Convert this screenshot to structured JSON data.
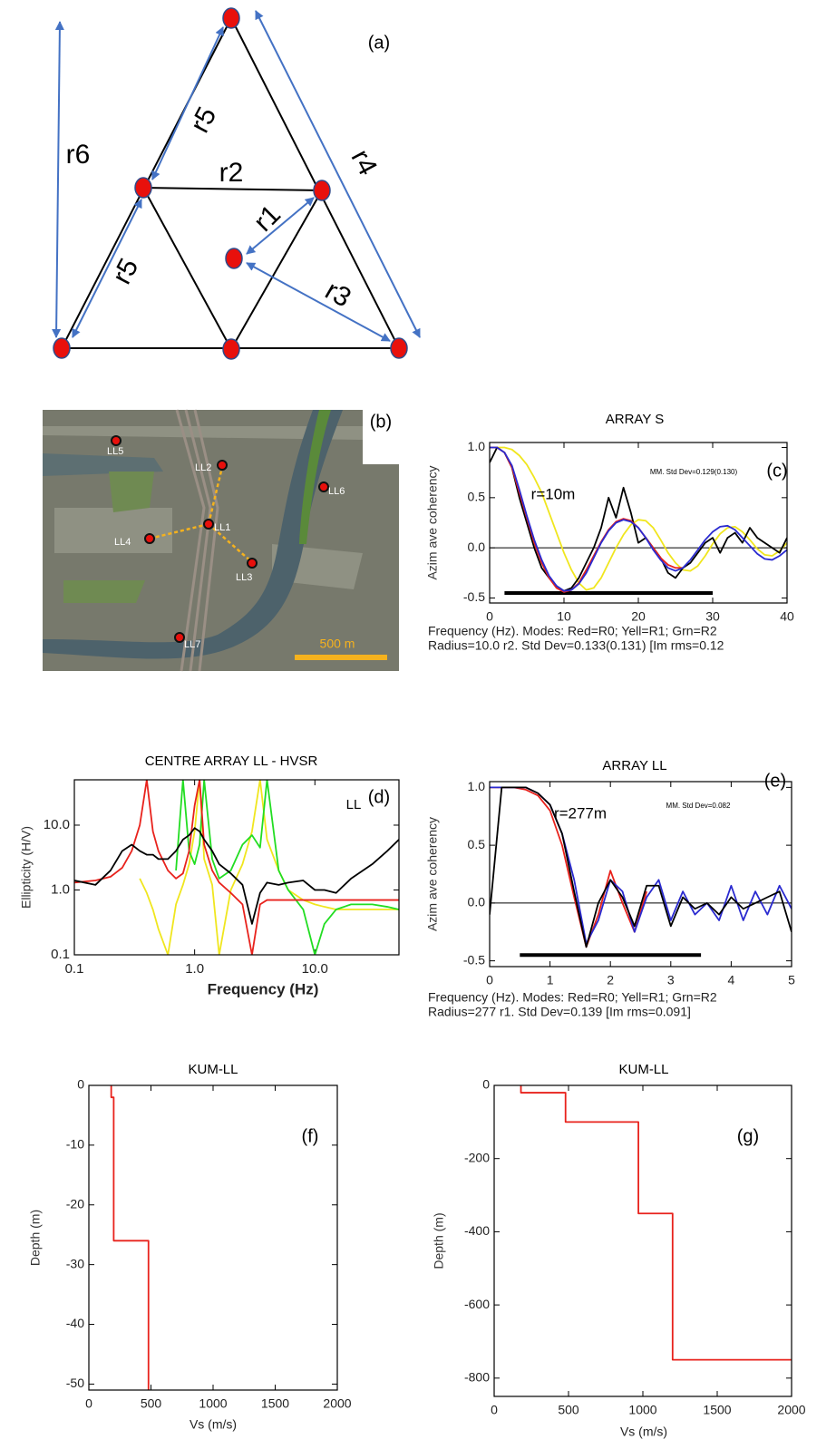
{
  "diagram": {
    "panel_label": "(a)",
    "distance_labels": [
      "r6",
      "r5",
      "r2",
      "r4",
      "r1",
      "r5",
      "r3"
    ]
  },
  "map": {
    "panel_label": "(b)",
    "sites": [
      "LL5",
      "LL2",
      "LL6",
      "LL1",
      "LL4",
      "LL3",
      "LL7"
    ],
    "scale_label": "500 m"
  },
  "chart_data": [
    {
      "type": "line",
      "title": "ARRAY S",
      "panel_label": "(c)",
      "annotations": [
        "r=10m",
        "MM.  Std Dev=0.129(0.130)"
      ],
      "x_label": [
        "Frequency (Hz).     Modes: Red=R0; Yell=R1; Grn=R2",
        "Radius=10.0 r2.   Std Dev=0.133(0.131) [Im rms=0.12"
      ],
      "y_label": "Azim ave coherency",
      "xlim": [
        0,
        40
      ],
      "ylim": [
        -0.55,
        1.05
      ],
      "xticks": [
        0,
        10,
        20,
        30,
        40
      ],
      "yticks": [
        -0.5,
        {
          "value": 0,
          "label": "0.0"
        },
        0.5,
        {
          "value": 1,
          "label": "1.0"
        }
      ],
      "reference_line": 0,
      "fit_range": {
        "x": [
          2,
          30
        ],
        "y": -0.45
      },
      "x": [
        0,
        1,
        2,
        3,
        4,
        5,
        6,
        7,
        8,
        9,
        10,
        11,
        12,
        13,
        14,
        15,
        16,
        17,
        18,
        19,
        20,
        21,
        22,
        23,
        24,
        25,
        26,
        27,
        28,
        29,
        30,
        31,
        32,
        33,
        34,
        35,
        36,
        37,
        38,
        39,
        40
      ],
      "series": [
        {
          "color": "#f0e61e",
          "values": [
            1.0,
            1.0,
            1.0,
            0.98,
            0.92,
            0.83,
            0.7,
            0.55,
            0.35,
            0.15,
            -0.05,
            -0.22,
            -0.35,
            -0.42,
            -0.4,
            -0.3,
            -0.15,
            0.0,
            0.13,
            0.23,
            0.28,
            0.27,
            0.2,
            0.08,
            -0.05,
            -0.15,
            -0.22,
            -0.23,
            -0.18,
            -0.08,
            0.04,
            0.14,
            0.2,
            0.21,
            0.16,
            0.08,
            -0.01,
            -0.07,
            -0.08,
            -0.03,
            0.05
          ]
        },
        {
          "color": "#000000",
          "values": [
            0.85,
            1.0,
            0.95,
            0.8,
            0.5,
            0.25,
            0.0,
            -0.2,
            -0.3,
            -0.38,
            -0.43,
            -0.4,
            -0.3,
            -0.15,
            0.0,
            0.2,
            0.5,
            0.3,
            0.6,
            0.35,
            0.05,
            0.1,
            0.0,
            -0.1,
            -0.25,
            -0.3,
            -0.2,
            -0.15,
            -0.05,
            0.05,
            0.1,
            -0.05,
            0.1,
            0.15,
            0.05,
            0.2,
            0.1,
            0.05,
            0.0,
            -0.05,
            0.1
          ]
        },
        {
          "color": "#e8221c",
          "values": [
            1.0,
            1.0,
            0.95,
            0.8,
            0.55,
            0.3,
            0.05,
            -0.15,
            -0.3,
            -0.4,
            -0.44,
            -0.42,
            -0.35,
            -0.22,
            -0.08,
            0.06,
            0.18,
            0.26,
            0.29,
            0.27,
            0.2,
            0.1,
            0.0,
            -0.1,
            -0.17,
            -0.2,
            -0.2,
            null,
            null,
            null,
            null,
            null,
            null,
            null,
            null,
            null,
            null,
            null,
            null,
            null,
            null
          ]
        },
        {
          "color": "#2a2ad0",
          "values": [
            1.0,
            1.0,
            0.95,
            0.82,
            0.58,
            0.32,
            0.08,
            -0.12,
            -0.28,
            -0.38,
            -0.43,
            -0.42,
            -0.36,
            -0.25,
            -0.1,
            0.05,
            0.17,
            0.25,
            0.28,
            0.26,
            0.2,
            0.1,
            -0.02,
            -0.12,
            -0.2,
            -0.23,
            -0.2,
            -0.12,
            -0.02,
            0.08,
            0.16,
            0.21,
            0.22,
            0.18,
            0.1,
            0.02,
            -0.06,
            -0.11,
            -0.12,
            -0.08,
            -0.02
          ]
        }
      ]
    },
    {
      "type": "line",
      "title": "CENTRE ARRAY LL  -  HVSR",
      "panel_label": "(d)",
      "annotations": [
        "LL"
      ],
      "x_label": "Frequency (Hz)",
      "y_label": "Ellipticity (H/V)",
      "log_x": true,
      "log_y": true,
      "xlim": [
        0.1,
        50
      ],
      "ylim": [
        0.1,
        50
      ],
      "xticks": [
        0.1,
        {
          "value": 1,
          "label": "1.0"
        },
        {
          "value": 10,
          "label": "10.0"
        }
      ],
      "yticks": [
        0.1,
        {
          "value": 1,
          "label": "1.0"
        },
        {
          "value": 10,
          "label": "10.0"
        }
      ],
      "x": [
        0.1,
        0.15,
        0.2,
        0.25,
        0.3,
        0.35,
        0.4,
        0.45,
        0.5,
        0.6,
        0.7,
        0.8,
        0.9,
        1.0,
        1.1,
        1.2,
        1.4,
        1.6,
        2,
        2.5,
        3,
        3.5,
        4,
        5,
        6,
        8,
        10,
        12,
        15,
        20,
        30,
        40,
        50
      ],
      "series": [
        {
          "color": "#f0e61e",
          "values": [
            null,
            null,
            null,
            null,
            null,
            1.5,
            0.9,
            0.5,
            0.25,
            0.1,
            0.6,
            1.2,
            2.5,
            8,
            50,
            3,
            1.2,
            0.1,
            1.0,
            2.5,
            8,
            50,
            6,
            2,
            1,
            0.7,
            0.6,
            0.55,
            0.5,
            0.5,
            0.5,
            0.5,
            0.5
          ]
        },
        {
          "color": "#22dd22",
          "values": [
            null,
            null,
            null,
            null,
            null,
            null,
            null,
            null,
            null,
            null,
            2,
            50,
            4,
            2.5,
            5,
            50,
            3,
            1.5,
            2,
            5,
            7,
            4.5,
            50,
            2,
            1,
            0.5,
            0.1,
            0.3,
            0.5,
            0.6,
            0.6,
            0.55,
            0.5
          ]
        },
        {
          "color": "#e8221c",
          "values": [
            1.3,
            1.4,
            1.6,
            2.2,
            4,
            10,
            50,
            8,
            4,
            2,
            1.5,
            1.8,
            4,
            20,
            50,
            5,
            2,
            1.3,
            0.9,
            0.6,
            0.1,
            0.6,
            0.7,
            0.7,
            0.7,
            0.7,
            0.7,
            0.7,
            0.7,
            0.7,
            0.7,
            0.7,
            0.7
          ]
        },
        {
          "color": "#000000",
          "values": [
            1.4,
            1.2,
            2,
            4,
            5,
            4,
            3.5,
            3.5,
            3,
            3,
            4,
            6,
            7,
            9,
            8,
            6,
            4,
            2.5,
            1.8,
            1.2,
            0.3,
            0.9,
            1.3,
            1.2,
            1.3,
            1.4,
            1.0,
            1.0,
            0.9,
            1.5,
            2.5,
            4,
            6
          ]
        }
      ]
    },
    {
      "type": "line",
      "title": "ARRAY LL",
      "panel_label": "(e)",
      "annotations": [
        "r=277m",
        "MM.  Std Dev=0.082"
      ],
      "x_label": [
        "Frequency (Hz).     Modes: Red=R0; Yell=R1; Grn=R2",
        "Radius=277 r1.   Std Dev=0.139 [Im rms=0.091]"
      ],
      "y_label": "Azim ave coherency",
      "xlim": [
        0,
        5
      ],
      "ylim": [
        -0.55,
        1.05
      ],
      "xticks": [
        0,
        1,
        2,
        3,
        4,
        5
      ],
      "yticks": [
        -0.5,
        {
          "value": 0,
          "label": "0.0"
        },
        0.5,
        {
          "value": 1,
          "label": "1.0"
        }
      ],
      "reference_line": 0,
      "fit_range": {
        "x": [
          0.5,
          3.5
        ],
        "y": -0.45
      },
      "x": [
        0,
        0.2,
        0.4,
        0.6,
        0.8,
        1.0,
        1.2,
        1.4,
        1.6,
        1.8,
        2.0,
        2.2,
        2.4,
        2.6,
        2.8,
        3.0,
        3.2,
        3.4,
        3.6,
        3.8,
        4.0,
        4.2,
        4.4,
        4.6,
        4.8,
        5.0
      ],
      "series": [
        {
          "color": "#e8221c",
          "values": [
            1.0,
            1.0,
            1.0,
            0.98,
            0.93,
            0.8,
            0.5,
            0.05,
            -0.38,
            -0.1,
            0.28,
            0.0,
            -0.25,
            0.1,
            null,
            null,
            null,
            null,
            null,
            null,
            null,
            null,
            null,
            null,
            null,
            null
          ]
        },
        {
          "color": "#2a2ad0",
          "values": [
            1.0,
            1.0,
            1.0,
            1.0,
            0.95,
            0.85,
            0.6,
            0.2,
            -0.35,
            -0.15,
            0.2,
            0.1,
            -0.25,
            0.05,
            0.2,
            -0.15,
            0.1,
            -0.1,
            0.0,
            -0.15,
            0.15,
            -0.15,
            0.1,
            -0.1,
            0.15,
            -0.05
          ]
        },
        {
          "color": "#000000",
          "values": [
            -0.1,
            1.0,
            1.0,
            1.0,
            0.95,
            0.85,
            0.6,
            0.1,
            -0.38,
            0.0,
            0.2,
            0.05,
            -0.2,
            0.15,
            0.15,
            -0.2,
            0.05,
            -0.05,
            0.0,
            -0.1,
            0.05,
            -0.05,
            0.0,
            0.05,
            0.1,
            -0.25
          ]
        }
      ]
    },
    {
      "type": "line",
      "title": "KUM-LL",
      "panel_label": "(f)",
      "x_label": "Vs (m/s)",
      "y_label": "Depth (m)",
      "xlim": [
        0,
        2000
      ],
      "ylim": [
        -51,
        0
      ],
      "xticks": [
        0,
        500,
        1000,
        1500,
        2000
      ],
      "yticks": [
        0,
        -10,
        -20,
        -30,
        -40,
        -50
      ],
      "x": [
        180,
        180,
        200,
        200,
        480,
        480
      ],
      "series": [
        {
          "color": "#e8221c",
          "values": [
            0,
            -2,
            -2,
            -26,
            -26,
            -51
          ]
        }
      ]
    },
    {
      "type": "line",
      "title": "KUM-LL",
      "panel_label": "(g)",
      "x_label": "Vs (m/s)",
      "y_label": "Depth (m)",
      "xlim": [
        0,
        2000
      ],
      "ylim": [
        -850,
        0
      ],
      "xticks": [
        0,
        500,
        1000,
        1500,
        2000
      ],
      "yticks": [
        0,
        -200,
        -400,
        -600,
        -800
      ],
      "x": [
        180,
        180,
        480,
        480,
        970,
        970,
        1200,
        1200,
        2000
      ],
      "series": [
        {
          "color": "#e8221c",
          "values": [
            0,
            -20,
            -20,
            -100,
            -100,
            -350,
            -350,
            -750,
            -750
          ]
        }
      ]
    }
  ]
}
